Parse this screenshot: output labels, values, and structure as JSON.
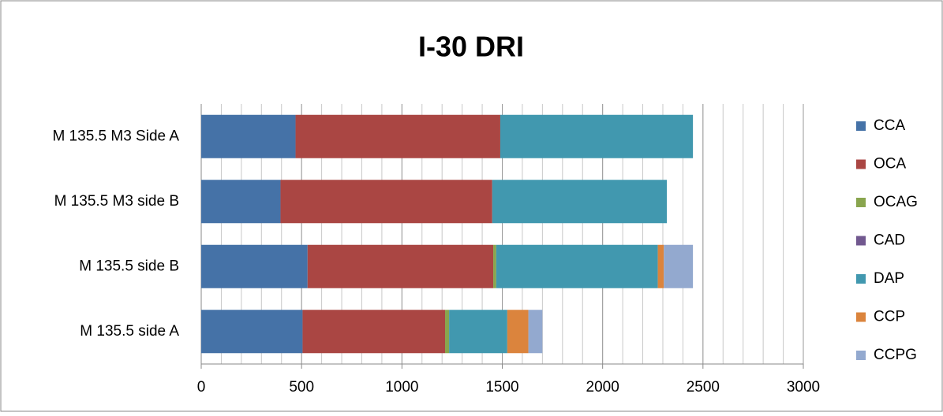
{
  "chart_data": {
    "type": "stacked_bar_horizontal",
    "title": "I-30 DRI",
    "categories": [
      "M 135.5 M3 Side A",
      "M 135.5 M3 side B",
      "M 135.5 side B",
      "M 135.5 side A"
    ],
    "series": [
      {
        "name": "CCA",
        "color": "#4572A7",
        "values": [
          470,
          395,
          530,
          505
        ]
      },
      {
        "name": "OCA",
        "color": "#AA4643",
        "values": [
          1020,
          1055,
          925,
          710
        ]
      },
      {
        "name": "OCAG",
        "color": "#89A54E",
        "values": [
          0,
          0,
          15,
          20
        ]
      },
      {
        "name": "CAD",
        "color": "#71588F",
        "values": [
          0,
          0,
          0,
          0
        ]
      },
      {
        "name": "DAP",
        "color": "#4198AF",
        "values": [
          960,
          870,
          805,
          290
        ]
      },
      {
        "name": "CCP",
        "color": "#DB843D",
        "values": [
          0,
          0,
          30,
          105
        ]
      },
      {
        "name": "CCPG",
        "color": "#93A9CF",
        "values": [
          0,
          0,
          145,
          70
        ]
      }
    ],
    "xlim": [
      0,
      3000
    ],
    "xticks": [
      0,
      500,
      1000,
      1500,
      2000,
      2500,
      3000
    ],
    "grid": true,
    "minor_grid_step": 100,
    "legend": "right"
  }
}
